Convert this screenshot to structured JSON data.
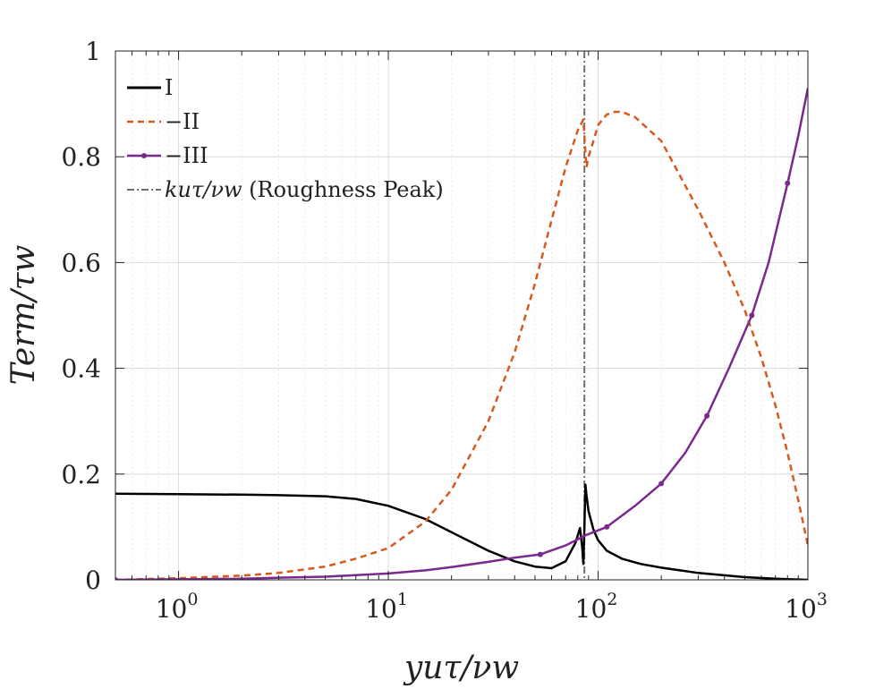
{
  "chart_data": {
    "type": "line",
    "xscale": "log",
    "xlim": [
      0.5,
      1000
    ],
    "ylim": [
      0,
      1
    ],
    "grid": true,
    "legend_position": "top-left",
    "xlabel": "yuτ/νw",
    "ylabel": "Term/τw",
    "x_ticks": [
      {
        "value": 1,
        "base": "10",
        "exp": "0"
      },
      {
        "value": 10,
        "base": "10",
        "exp": "1"
      },
      {
        "value": 100,
        "base": "10",
        "exp": "2"
      },
      {
        "value": 1000,
        "base": "10",
        "exp": "3"
      }
    ],
    "y_ticks": [
      {
        "value": 0,
        "label": "0"
      },
      {
        "value": 0.2,
        "label": "0.2"
      },
      {
        "value": 0.4,
        "label": "0.4"
      },
      {
        "value": 0.6,
        "label": "0.6"
      },
      {
        "value": 0.8,
        "label": "0.8"
      },
      {
        "value": 1,
        "label": "1"
      }
    ],
    "series": [
      {
        "name": "I",
        "legend": "I",
        "color": "#000000",
        "style": "solid",
        "x": [
          0.5,
          1,
          2,
          3,
          5,
          7,
          10,
          15,
          20,
          30,
          40,
          50,
          60,
          70,
          78,
          82,
          84,
          85,
          86,
          87,
          88,
          90,
          95,
          100,
          110,
          130,
          160,
          200,
          300,
          500,
          700,
          1000
        ],
        "y": [
          0.163,
          0.162,
          0.161,
          0.16,
          0.158,
          0.153,
          0.14,
          0.115,
          0.09,
          0.055,
          0.035,
          0.025,
          0.022,
          0.035,
          0.07,
          0.098,
          0.06,
          0.03,
          0.1,
          0.18,
          0.16,
          0.13,
          0.095,
          0.075,
          0.055,
          0.04,
          0.03,
          0.023,
          0.013,
          0.005,
          0.002,
          0.0
        ]
      },
      {
        "name": "-II",
        "legend": "−II",
        "color": "#d65a1f",
        "style": "dashed",
        "x": [
          0.5,
          1,
          2,
          3,
          5,
          7,
          10,
          15,
          20,
          30,
          40,
          50,
          60,
          70,
          80,
          85,
          88,
          90,
          95,
          100,
          110,
          120,
          130,
          150,
          200,
          300,
          400,
          500,
          600,
          700,
          800,
          900,
          1000
        ],
        "y": [
          0.0,
          0.003,
          0.008,
          0.013,
          0.025,
          0.04,
          0.06,
          0.11,
          0.17,
          0.3,
          0.43,
          0.56,
          0.68,
          0.78,
          0.85,
          0.87,
          0.78,
          0.8,
          0.83,
          0.86,
          0.88,
          0.885,
          0.885,
          0.875,
          0.83,
          0.7,
          0.6,
          0.51,
          0.42,
          0.33,
          0.24,
          0.15,
          0.065
        ]
      },
      {
        "name": "-III",
        "legend": "−III",
        "color": "#7a2a8c",
        "style": "solid-marker",
        "x": [
          0.5,
          1,
          2,
          3,
          5,
          7,
          10,
          15,
          20,
          30,
          40,
          53,
          70,
          88,
          110,
          150,
          200,
          260,
          330,
          420,
          540,
          650,
          800,
          900,
          1000
        ],
        "y": [
          0.0,
          0.001,
          0.002,
          0.004,
          0.006,
          0.009,
          0.012,
          0.018,
          0.024,
          0.034,
          0.042,
          0.048,
          0.065,
          0.085,
          0.1,
          0.14,
          0.182,
          0.24,
          0.31,
          0.4,
          0.5,
          0.6,
          0.75,
          0.84,
          0.93
        ],
        "markers_x": [
          0.5,
          53,
          110,
          200,
          330,
          540,
          800
        ],
        "markers_y": [
          0.0,
          0.048,
          0.1,
          0.182,
          0.31,
          0.5,
          0.75
        ]
      }
    ],
    "reference_line": {
      "name": "kuτ/νw (Roughness Peak)",
      "legend_main": "kuτ/νw",
      "legend_suffix": " (Roughness Peak)",
      "x": 86,
      "color": "#707070",
      "style": "dashdot"
    }
  }
}
